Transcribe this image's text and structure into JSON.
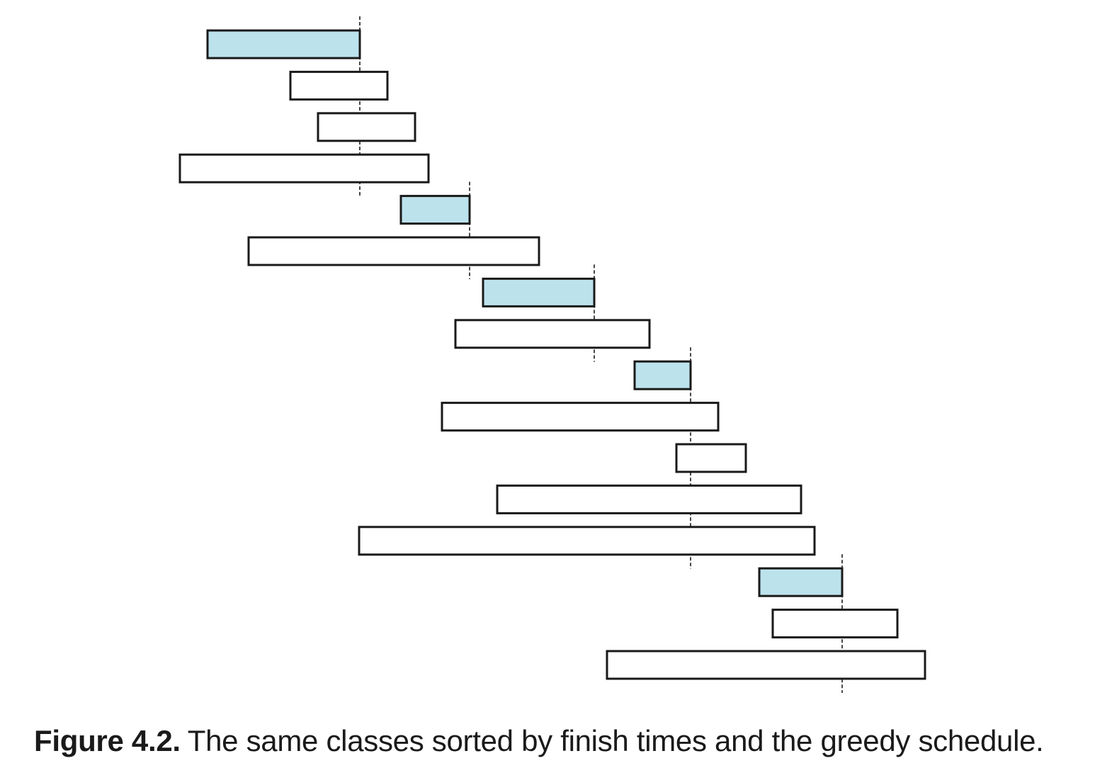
{
  "caption": {
    "label": "Figure 4.2.",
    "text": "The same classes sorted by finish times and the greedy schedule."
  },
  "colors": {
    "selected_fill": "#bce2ec",
    "unselected_fill": "#ffffff",
    "stroke": "#1a1a1a"
  },
  "intervals": [
    {
      "start": 293,
      "end": 508,
      "selected": true
    },
    {
      "start": 410,
      "end": 547,
      "selected": false
    },
    {
      "start": 449,
      "end": 586,
      "selected": false
    },
    {
      "start": 254,
      "end": 605,
      "selected": false
    },
    {
      "start": 566,
      "end": 663,
      "selected": true
    },
    {
      "start": 351,
      "end": 761,
      "selected": false
    },
    {
      "start": 682,
      "end": 839,
      "selected": true
    },
    {
      "start": 643,
      "end": 917,
      "selected": false
    },
    {
      "start": 896,
      "end": 975,
      "selected": true
    },
    {
      "start": 624,
      "end": 1014,
      "selected": false
    },
    {
      "start": 955,
      "end": 1053,
      "selected": false
    },
    {
      "start": 702,
      "end": 1131,
      "selected": false
    },
    {
      "start": 507,
      "end": 1150,
      "selected": false
    },
    {
      "start": 1072,
      "end": 1189,
      "selected": true
    },
    {
      "start": 1091,
      "end": 1267,
      "selected": false
    },
    {
      "start": 857,
      "end": 1306,
      "selected": false
    }
  ]
}
